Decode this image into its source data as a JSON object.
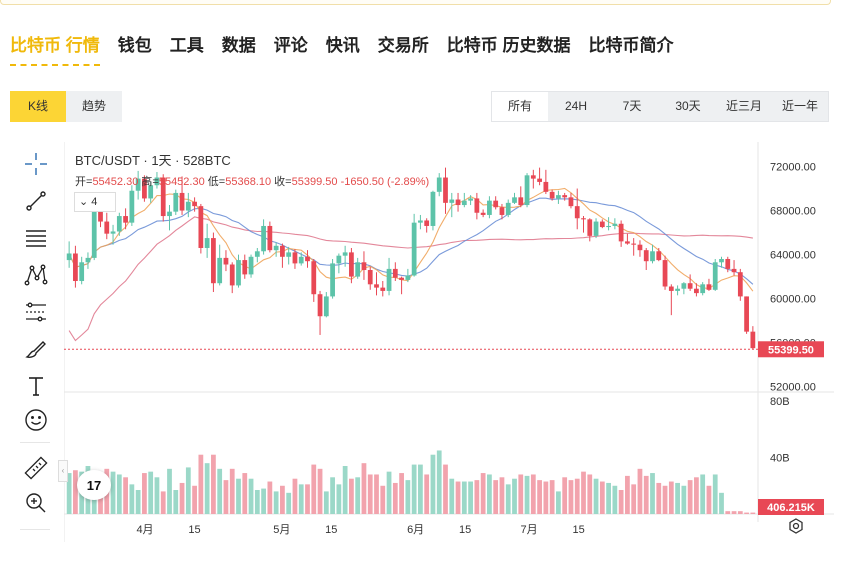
{
  "nav": {
    "items": [
      {
        "label": "比特币 行情",
        "active": true
      },
      {
        "label": "钱包"
      },
      {
        "label": "工具"
      },
      {
        "label": "数据"
      },
      {
        "label": "评论"
      },
      {
        "label": "快讯"
      },
      {
        "label": "交易所"
      },
      {
        "label": "比特币 历史数据"
      },
      {
        "label": "比特币简介"
      }
    ]
  },
  "view": {
    "kline": "K线",
    "trend": "趋势",
    "selected": "kline"
  },
  "ranges": [
    {
      "label": "所有",
      "selected": true
    },
    {
      "label": "24H"
    },
    {
      "label": "7天"
    },
    {
      "label": "30天"
    },
    {
      "label": "近三月"
    },
    {
      "label": "近一年"
    }
  ],
  "toolbar": [
    "crosshair-icon",
    "trendline-icon",
    "fib-retracement-icon",
    "pattern-icon",
    "prediction-icon",
    "brush-icon",
    "text-icon",
    "emoji-icon",
    "ruler-icon",
    "zoom-in-icon"
  ],
  "chart": {
    "symbol": "BTC/USDT · 1天 · 528BTC",
    "ohlc": {
      "open_label": "开=",
      "open": "55452.30",
      "high_label": "高=",
      "high": "55452.30",
      "low_label": "低=",
      "low": "55368.10",
      "close_label": "收=",
      "close": "55399.50",
      "change": "-1650.50 (-2.89%)"
    },
    "indicator_count": "4",
    "price_tag": "55399.50",
    "volume_tag": "406.215K",
    "tv_logo": "17",
    "colors": {
      "up": "#5dc3a9",
      "down": "#e84855",
      "ma_pink": "#e07a8f",
      "ma_blue": "#6b8fd6",
      "ma_orange": "#f0a45a"
    }
  },
  "chart_data": {
    "type": "candlestick",
    "title": "BTC/USDT · 1天 · 528BTC",
    "price_axis": {
      "ticks": [
        72000,
        68000,
        64000,
        60000,
        56000,
        52000
      ],
      "tick_labels": [
        "72000.00",
        "68000.00",
        "64000.00",
        "60000.00",
        "56000.00",
        "52000.00"
      ],
      "ylim": [
        51700,
        73500
      ]
    },
    "volume_axis": {
      "ticks": [
        80,
        40
      ],
      "tick_labels": [
        "80B",
        "40B"
      ],
      "ylim": [
        0,
        85
      ]
    },
    "x_ticks": [
      "4月",
      "15",
      "5月",
      "15",
      "6月",
      "15",
      "7月",
      "15"
    ],
    "ohlc": [
      [
        63500,
        65200,
        62800,
        64100
      ],
      [
        64100,
        64800,
        61000,
        61600
      ],
      [
        61600,
        63800,
        61300,
        63300
      ],
      [
        63300,
        64200,
        62700,
        63700
      ],
      [
        63700,
        68700,
        63500,
        68400
      ],
      [
        68400,
        69400,
        66500,
        67000
      ],
      [
        67000,
        67800,
        65400,
        65900
      ],
      [
        65900,
        66700,
        64900,
        66100
      ],
      [
        66100,
        67800,
        65700,
        67500
      ],
      [
        67500,
        68200,
        66300,
        66900
      ],
      [
        66900,
        70300,
        66600,
        69800
      ],
      [
        69800,
        71600,
        69000,
        70900
      ],
      [
        70900,
        71200,
        68800,
        69100
      ],
      [
        69100,
        70600,
        68700,
        70300
      ],
      [
        70300,
        71500,
        70000,
        71000
      ],
      [
        71000,
        71300,
        67000,
        67500
      ],
      [
        67500,
        68500,
        66200,
        67900
      ],
      [
        67900,
        69900,
        67600,
        69600
      ],
      [
        69600,
        71100,
        67600,
        68000
      ],
      [
        68000,
        69600,
        67400,
        68800
      ],
      [
        68800,
        69200,
        67900,
        68400
      ],
      [
        68400,
        68600,
        64100,
        64600
      ],
      [
        64600,
        66800,
        63700,
        65500
      ],
      [
        65500,
        66000,
        60600,
        61400
      ],
      [
        61400,
        64900,
        61200,
        63700
      ],
      [
        63700,
        64400,
        62500,
        63100
      ],
      [
        63100,
        63300,
        60500,
        61200
      ],
      [
        61200,
        64000,
        61000,
        63500
      ],
      [
        63500,
        64000,
        61800,
        62200
      ],
      [
        62200,
        64000,
        61900,
        63800
      ],
      [
        63800,
        64600,
        63300,
        64300
      ],
      [
        64300,
        67200,
        64000,
        66600
      ],
      [
        66600,
        67000,
        64200,
        64400
      ],
      [
        64400,
        65100,
        63800,
        64800
      ],
      [
        64800,
        65000,
        62800,
        63800
      ],
      [
        63800,
        64700,
        63100,
        64200
      ],
      [
        64200,
        64500,
        62700,
        63200
      ],
      [
        63200,
        64200,
        63000,
        63800
      ],
      [
        63800,
        64400,
        62800,
        63400
      ],
      [
        63400,
        63600,
        59700,
        60400
      ],
      [
        60400,
        60700,
        56700,
        58400
      ],
      [
        58400,
        60600,
        58300,
        60200
      ],
      [
        60200,
        63600,
        60000,
        63200
      ],
      [
        63200,
        64100,
        62300,
        63900
      ],
      [
        63900,
        64800,
        62900,
        64200
      ],
      [
        64200,
        64600,
        61400,
        62000
      ],
      [
        62000,
        63700,
        61800,
        63300
      ],
      [
        63300,
        64300,
        61700,
        62600
      ],
      [
        62600,
        62900,
        60800,
        61300
      ],
      [
        61300,
        62400,
        60300,
        61000
      ],
      [
        61000,
        61600,
        60200,
        60700
      ],
      [
        60700,
        63700,
        60300,
        62700
      ],
      [
        62700,
        63300,
        61600,
        61900
      ],
      [
        61900,
        62000,
        60400,
        61700
      ],
      [
        61700,
        62700,
        61500,
        62100
      ],
      [
        62100,
        67700,
        62000,
        66900
      ],
      [
        66900,
        67600,
        66300,
        67100
      ],
      [
        67100,
        67300,
        66000,
        66600
      ],
      [
        66600,
        69800,
        66200,
        69700
      ],
      [
        69700,
        71400,
        69300,
        71000
      ],
      [
        71000,
        71900,
        67700,
        68700
      ],
      [
        68700,
        69600,
        67400,
        69000
      ],
      [
        69000,
        69600,
        67900,
        68500
      ],
      [
        68500,
        69600,
        68300,
        68900
      ],
      [
        68900,
        69400,
        68500,
        69100
      ],
      [
        69100,
        69600,
        67200,
        67800
      ],
      [
        67800,
        68100,
        67400,
        67600
      ],
      [
        67600,
        69300,
        67300,
        68900
      ],
      [
        68900,
        69300,
        68100,
        68300
      ],
      [
        68300,
        68600,
        67200,
        67600
      ],
      [
        67600,
        69000,
        67400,
        68700
      ],
      [
        68700,
        69600,
        68600,
        69200
      ],
      [
        69200,
        70200,
        68300,
        68500
      ],
      [
        68500,
        71400,
        68300,
        71200
      ],
      [
        71200,
        71700,
        70000,
        70900
      ],
      [
        70900,
        71900,
        70300,
        70600
      ],
      [
        70600,
        71700,
        69500,
        69700
      ],
      [
        69700,
        69900,
        68900,
        69100
      ],
      [
        69100,
        69800,
        68600,
        69400
      ],
      [
        69400,
        69600,
        68900,
        69200
      ],
      [
        69200,
        69600,
        68200,
        68400
      ],
      [
        68400,
        70000,
        66300,
        67300
      ],
      [
        67300,
        67500,
        66000,
        67200
      ],
      [
        67200,
        67300,
        65200,
        65700
      ],
      [
        65700,
        67300,
        65500,
        67000
      ],
      [
        67000,
        67200,
        66400,
        66500
      ],
      [
        66500,
        67400,
        66200,
        66600
      ],
      [
        66600,
        67300,
        66300,
        66800
      ],
      [
        66800,
        67100,
        64700,
        65200
      ],
      [
        65200,
        65900,
        64900,
        65000
      ],
      [
        65000,
        65500,
        63900,
        64900
      ],
      [
        64900,
        65300,
        63800,
        64400
      ],
      [
        64400,
        64600,
        62600,
        63400
      ],
      [
        63400,
        64900,
        63200,
        64300
      ],
      [
        64300,
        64600,
        63400,
        63500
      ],
      [
        63500,
        63900,
        60800,
        61100
      ],
      [
        61100,
        61300,
        58500,
        60700
      ],
      [
        60700,
        61200,
        60300,
        60900
      ],
      [
        60900,
        61500,
        60400,
        61400
      ],
      [
        61400,
        62200,
        60700,
        60900
      ],
      [
        60900,
        61400,
        60200,
        60500
      ],
      [
        60500,
        61500,
        60300,
        61300
      ],
      [
        61300,
        61800,
        60700,
        60800
      ],
      [
        60800,
        63600,
        60700,
        63300
      ],
      [
        63300,
        63800,
        62800,
        63600
      ],
      [
        63600,
        63800,
        62400,
        62700
      ],
      [
        62700,
        63500,
        62100,
        62400
      ],
      [
        62400,
        62700,
        59800,
        60200
      ],
      [
        60200,
        60200,
        56800,
        57000
      ],
      [
        57000,
        57500,
        55400,
        55500
      ]
    ],
    "volume": [
      29,
      31,
      30,
      34,
      30,
      19,
      32,
      30,
      28,
      26,
      21,
      17,
      29,
      30,
      26,
      16,
      32,
      17,
      22,
      33,
      20,
      42,
      36,
      42,
      32,
      24,
      32,
      25,
      29,
      25,
      17,
      18,
      23,
      16,
      20,
      15,
      25,
      21,
      21,
      35,
      32,
      16,
      26,
      21,
      34,
      25,
      26,
      36,
      28,
      28,
      20,
      30,
      22,
      29,
      24,
      35,
      35,
      28,
      42,
      45,
      35,
      25,
      23,
      23,
      23,
      24,
      29,
      28,
      24,
      26,
      21,
      25,
      28,
      27,
      28,
      24,
      23,
      24,
      16,
      26,
      24,
      25,
      30,
      28,
      25,
      23,
      22,
      20,
      17,
      27,
      21,
      32,
      27,
      29,
      22,
      20,
      23,
      22,
      20,
      24,
      26,
      28,
      20,
      28,
      15,
      2,
      2,
      2,
      1,
      1
    ],
    "moving_averages": [
      {
        "name": "MA-pink",
        "color": "#e07a8f"
      },
      {
        "name": "MA-blue",
        "color": "#6b8fd6"
      },
      {
        "name": "MA-orange",
        "color": "#f0a45a"
      }
    ],
    "last_price": 55399.5,
    "last_volume": "406.215K"
  }
}
